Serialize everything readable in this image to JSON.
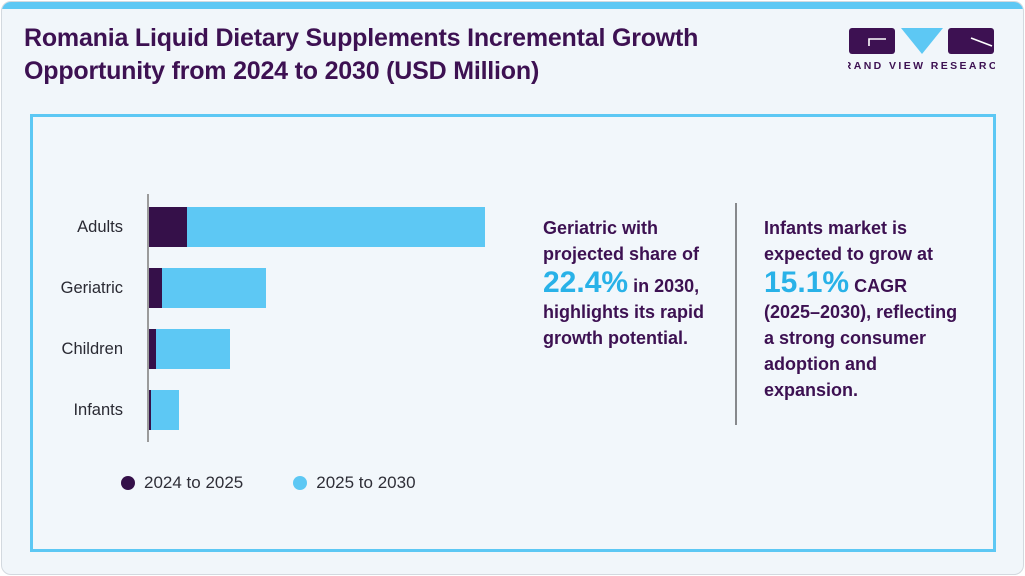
{
  "header": {
    "title": "Romania Liquid Dietary Supplements Incremental Growth Opportunity from 2024 to 2030 (USD Million)",
    "logo_text": "GRAND VIEW RESEARCH"
  },
  "colors": {
    "accent_blue": "#5dc8f4",
    "series_dark_purple": "#351049",
    "series_light_blue": "#5dc8f4",
    "title_purple": "#3d1152",
    "highlight_blue": "#29b2e8",
    "panel_background": "#f2f7fb"
  },
  "chart_data": {
    "type": "bar",
    "orientation": "horizontal",
    "stacked": true,
    "categories": [
      "Adults",
      "Geriatric",
      "Children",
      "Infants"
    ],
    "series": [
      {
        "name": "2024 to 2025",
        "color": "#351049",
        "values": [
          11.3,
          3.9,
          2.1,
          0.6
        ]
      },
      {
        "name": "2025 to 2030",
        "color": "#5dc8f4",
        "values": [
          88.7,
          30.9,
          22.0,
          8.3
        ]
      }
    ],
    "xlim": [
      0,
      100
    ],
    "value_note": "no numeric axis shown; values are relative units where the largest stacked bar (Adults) = 100",
    "grid": false,
    "legend_position": "bottom-left"
  },
  "insights": [
    {
      "pre": "Geriatric with projected share of",
      "big": "22.4%",
      "post": "in 2030, highlights its rapid growth potential."
    },
    {
      "pre": "Infants market is expected to grow at",
      "big": "15.1%",
      "post": "CAGR (2025–2030), reflecting a strong consumer adoption and expansion."
    }
  ]
}
